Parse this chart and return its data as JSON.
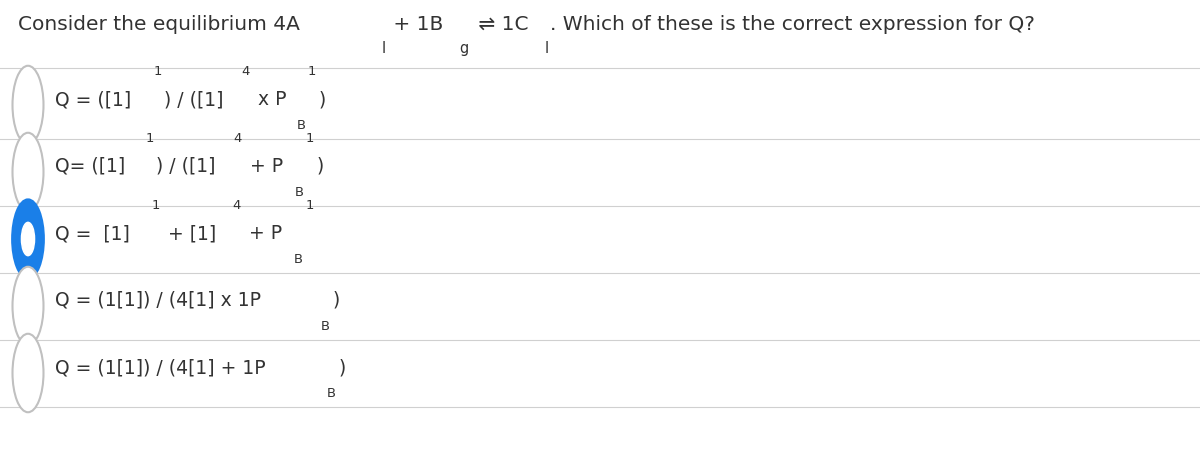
{
  "background_color": "#ffffff",
  "text_color": "#333333",
  "divider_color": "#d0d0d0",
  "circle_color_unselected": "#c0c0c0",
  "circle_color_selected": "#1a7fe8",
  "option_text_color": "#333333",
  "title_fontsize": 14.5,
  "option_fontsize": 13.5,
  "title_parts": [
    {
      "text": "Consider the equilibrium 4A",
      "style": "normal"
    },
    {
      "text": "l",
      "style": "sub"
    },
    {
      "text": " + 1B",
      "style": "normal"
    },
    {
      "text": "g",
      "style": "sub"
    },
    {
      "text": " ⇌ 1C",
      "style": "normal"
    },
    {
      "text": "l",
      "style": "sub"
    },
    {
      "text": ". Which of these is the correct expression for Q?",
      "style": "normal"
    }
  ],
  "options": [
    {
      "parts": [
        {
          "text": "Q = ([1]",
          "style": "normal"
        },
        {
          "text": "1",
          "style": "sup"
        },
        {
          "text": ") / ([1]",
          "style": "normal"
        },
        {
          "text": "4",
          "style": "sup"
        },
        {
          "text": " x P",
          "style": "normal"
        },
        {
          "text": "B",
          "style": "sub"
        },
        {
          "text": "1",
          "style": "sup_after_sub"
        },
        {
          "text": ")",
          "style": "normal"
        }
      ],
      "selected": false
    },
    {
      "parts": [
        {
          "text": "Q= ([1]",
          "style": "normal"
        },
        {
          "text": "1",
          "style": "sup"
        },
        {
          "text": ") / ([1]",
          "style": "normal"
        },
        {
          "text": "4",
          "style": "sup"
        },
        {
          "text": " + P",
          "style": "normal"
        },
        {
          "text": "B",
          "style": "sub"
        },
        {
          "text": "1",
          "style": "sup_after_sub"
        },
        {
          "text": ")",
          "style": "normal"
        }
      ],
      "selected": false
    },
    {
      "parts": [
        {
          "text": "Q =  [1]",
          "style": "normal"
        },
        {
          "text": "1",
          "style": "sup"
        },
        {
          "text": " + [1]",
          "style": "normal"
        },
        {
          "text": "4",
          "style": "sup"
        },
        {
          "text": " + P",
          "style": "normal"
        },
        {
          "text": "B",
          "style": "sub"
        },
        {
          "text": "1",
          "style": "sup_after_sub"
        }
      ],
      "selected": true
    },
    {
      "parts": [
        {
          "text": "Q = (1[1]) / (4[1] x 1P",
          "style": "normal"
        },
        {
          "text": "B",
          "style": "sub"
        },
        {
          "text": ")",
          "style": "normal"
        }
      ],
      "selected": false
    },
    {
      "parts": [
        {
          "text": "Q = (1[1]) / (4[1] + 1P",
          "style": "normal"
        },
        {
          "text": "B",
          "style": "sub"
        },
        {
          "text": ")",
          "style": "normal"
        }
      ],
      "selected": false
    }
  ]
}
